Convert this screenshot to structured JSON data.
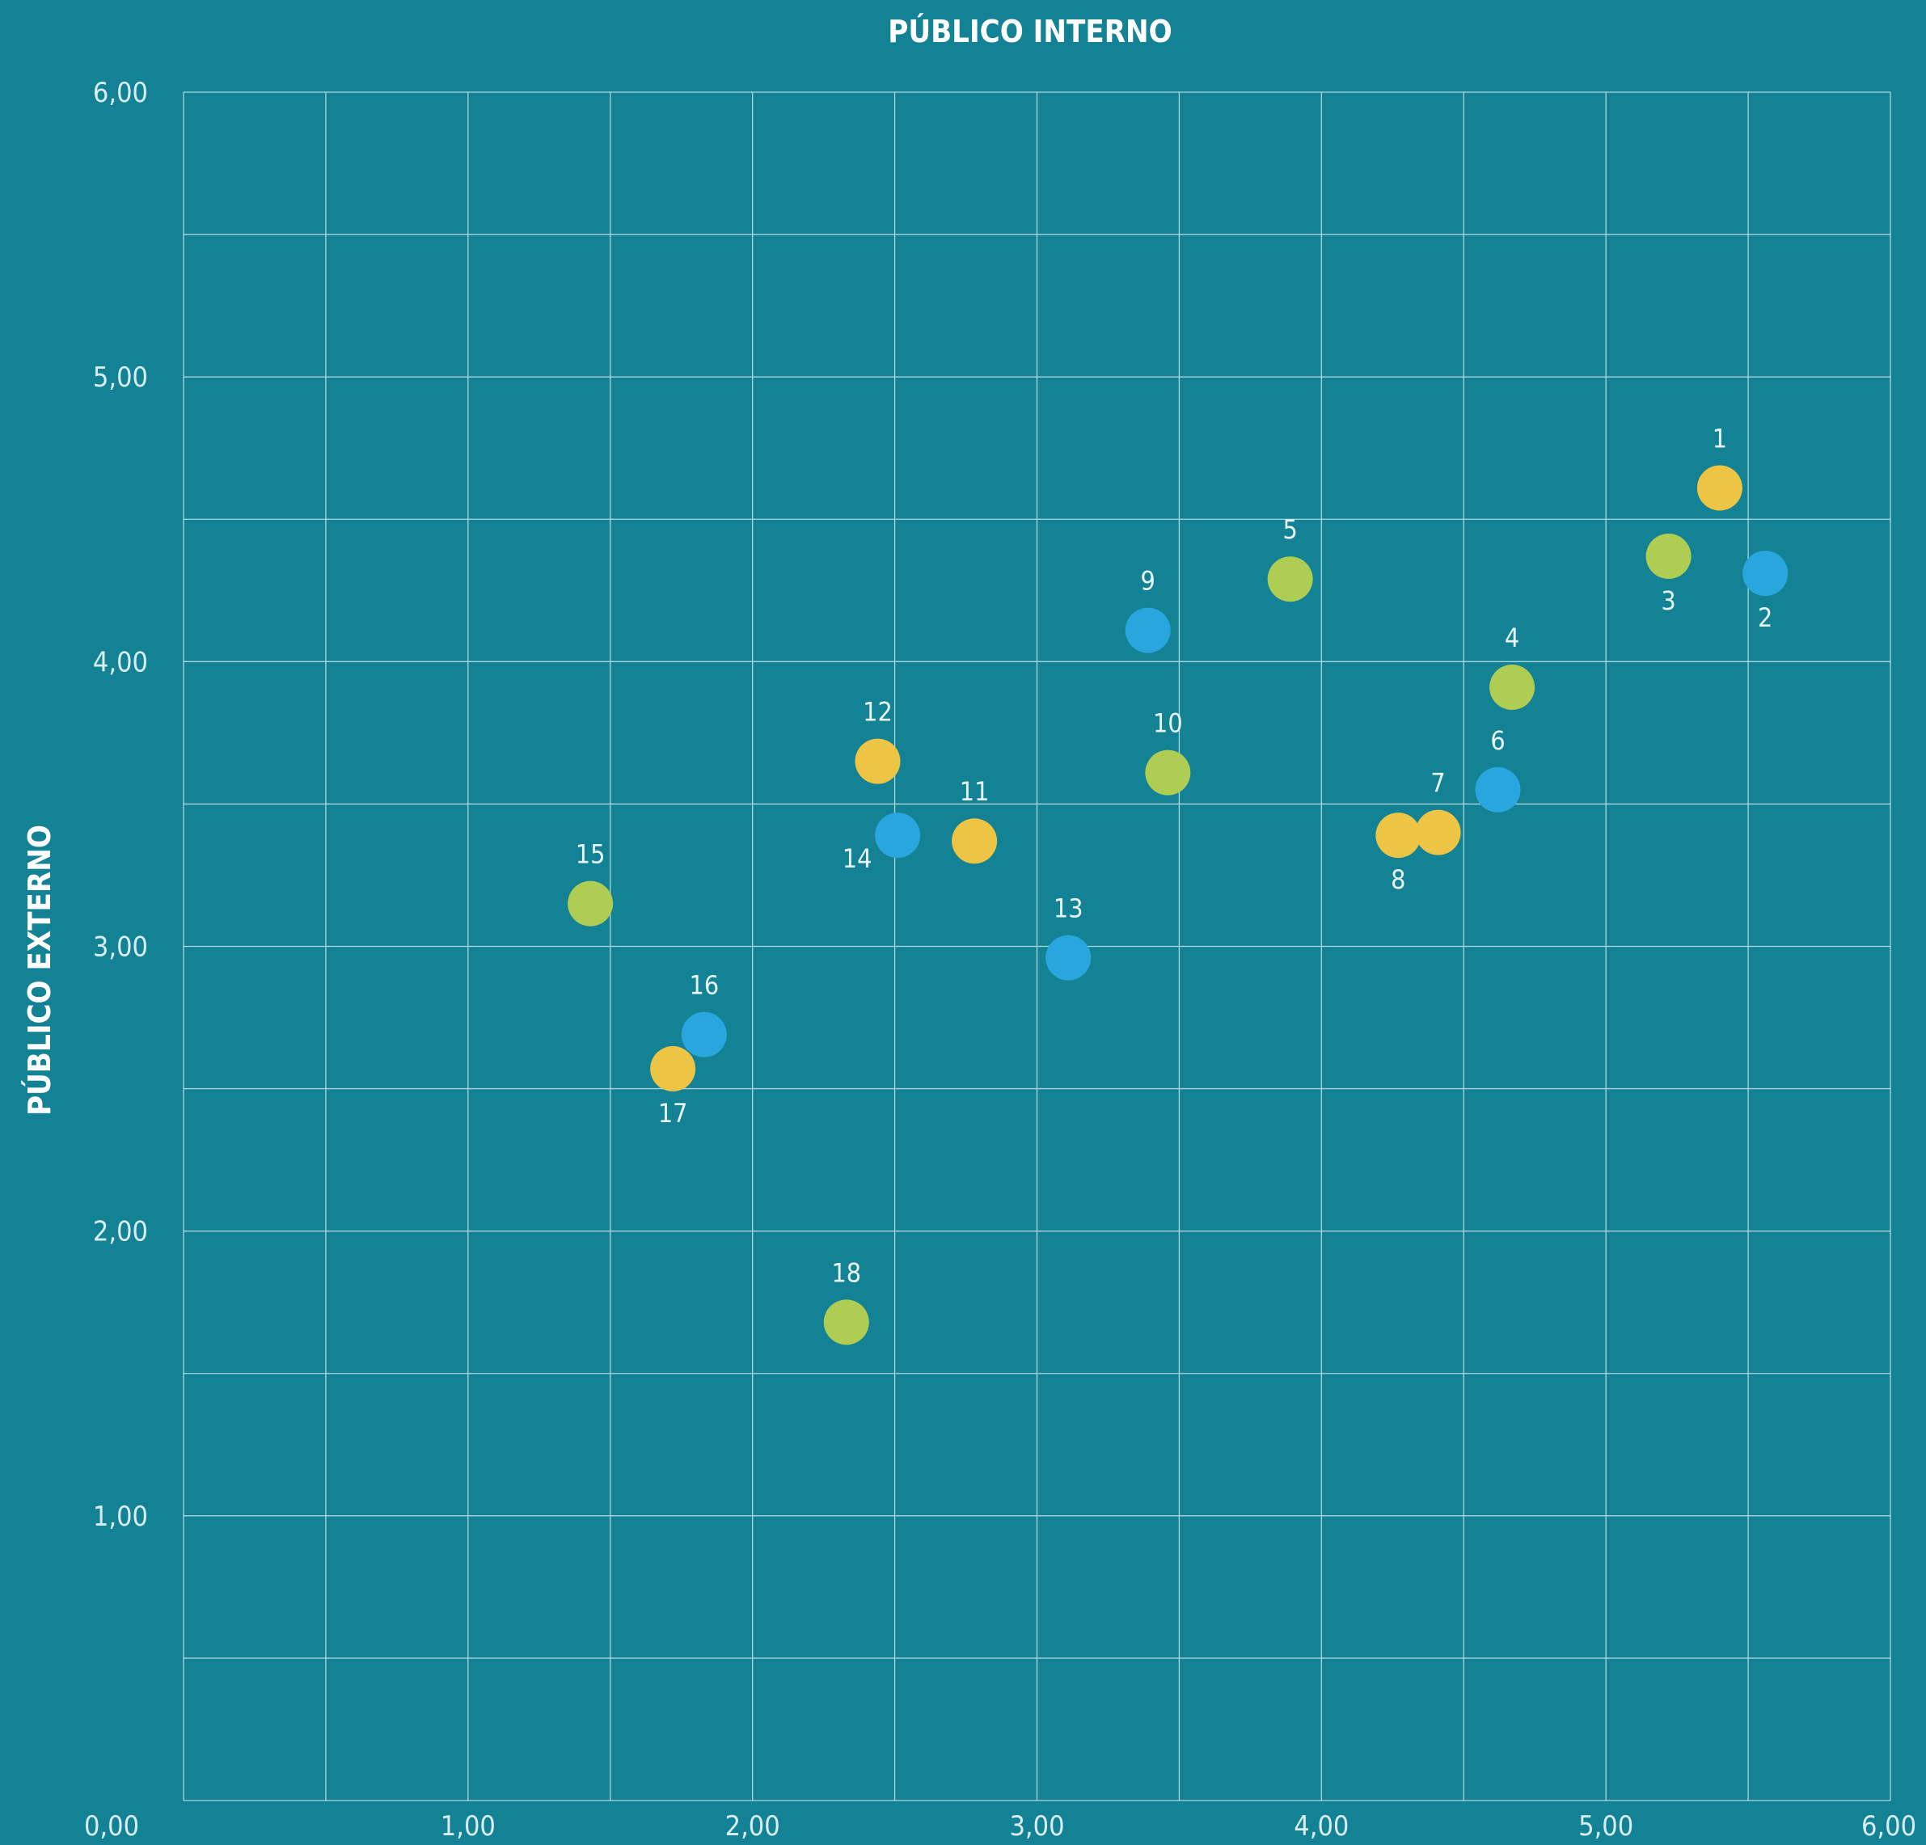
{
  "chart_data": {
    "type": "scatter",
    "title": "PÚBLICO INTERNO",
    "xlabel": "",
    "ylabel": "PÚBLICO EXTERNO",
    "xlim": [
      0,
      6
    ],
    "ylim": [
      0,
      6
    ],
    "x_ticks": [
      "0,00",
      "1,00",
      "2,00",
      "3,00",
      "4,00",
      "5,00",
      "6,00"
    ],
    "y_ticks": [
      "1,00",
      "2,00",
      "3,00",
      "4,00",
      "5,00",
      "6,00"
    ],
    "grid": true,
    "grid_step": 0.5,
    "colors": {
      "yellow": "#EDC443",
      "blue": "#2AA6DF",
      "green": "#AFCD52",
      "background": "#138294"
    },
    "points": [
      {
        "label": "1",
        "x": 5.4,
        "y": 4.61,
        "color": "yellow",
        "label_pos": "above"
      },
      {
        "label": "2",
        "x": 5.56,
        "y": 4.31,
        "color": "blue",
        "label_pos": "below"
      },
      {
        "label": "3",
        "x": 5.22,
        "y": 4.37,
        "color": "green",
        "label_pos": "below"
      },
      {
        "label": "4",
        "x": 4.67,
        "y": 3.91,
        "color": "green",
        "label_pos": "above"
      },
      {
        "label": "5",
        "x": 3.89,
        "y": 4.29,
        "color": "green",
        "label_pos": "above"
      },
      {
        "label": "6",
        "x": 4.62,
        "y": 3.55,
        "color": "blue",
        "label_pos": "above"
      },
      {
        "label": "7",
        "x": 4.41,
        "y": 3.4,
        "color": "yellow",
        "label_pos": "above"
      },
      {
        "label": "8",
        "x": 4.27,
        "y": 3.39,
        "color": "yellow",
        "label_pos": "below"
      },
      {
        "label": "9",
        "x": 3.39,
        "y": 4.11,
        "color": "blue",
        "label_pos": "above"
      },
      {
        "label": "10",
        "x": 3.46,
        "y": 3.61,
        "color": "green",
        "label_pos": "above"
      },
      {
        "label": "11",
        "x": 2.78,
        "y": 3.37,
        "color": "yellow",
        "label_pos": "above"
      },
      {
        "label": "12",
        "x": 2.44,
        "y": 3.65,
        "color": "yellow",
        "label_pos": "above"
      },
      {
        "label": "13",
        "x": 3.11,
        "y": 2.96,
        "color": "blue",
        "label_pos": "above"
      },
      {
        "label": "14",
        "x": 2.51,
        "y": 3.39,
        "color": "blue",
        "label_pos": "below-left"
      },
      {
        "label": "15",
        "x": 1.43,
        "y": 3.15,
        "color": "green",
        "label_pos": "above"
      },
      {
        "label": "16",
        "x": 1.83,
        "y": 2.69,
        "color": "blue",
        "label_pos": "above"
      },
      {
        "label": "17",
        "x": 1.72,
        "y": 2.57,
        "color": "yellow",
        "label_pos": "below"
      },
      {
        "label": "18",
        "x": 2.33,
        "y": 1.68,
        "color": "green",
        "label_pos": "above"
      }
    ]
  }
}
